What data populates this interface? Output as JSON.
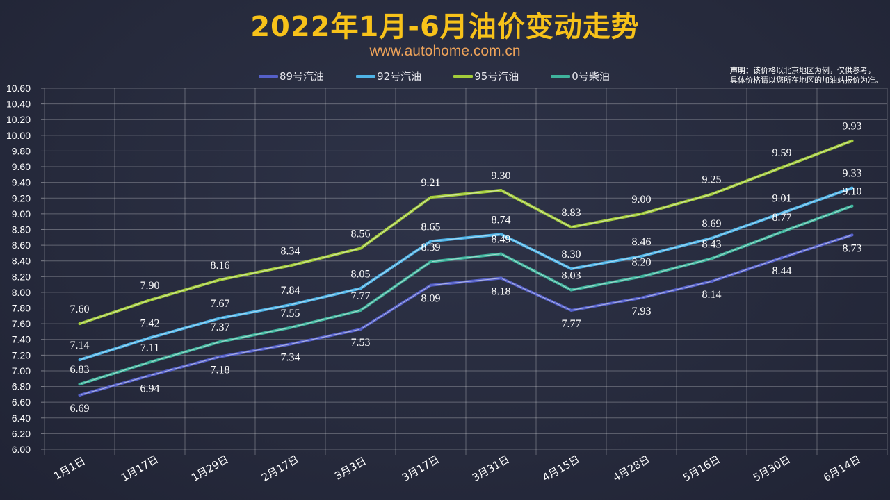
{
  "title": "2022年1月-6月油价变动走势",
  "subtitle": "www.autohome.com.cn",
  "note": {
    "label": "声明：",
    "line1": "该价格以北京地区为例，仅供参考，",
    "line2": "具体价格请以您所在地区的加油站报价为准。"
  },
  "chart_data": {
    "type": "line",
    "title": "2022年1月-6月油价变动走势",
    "xlabel": "",
    "ylabel": "",
    "ylim": [
      6.0,
      10.6
    ],
    "ystep": 0.2,
    "grid": true,
    "legend_position": "top",
    "categories": [
      "1月1日",
      "1月17日",
      "1月29日",
      "2月17日",
      "3月3日",
      "3月17日",
      "3月31日",
      "4月15日",
      "4月28日",
      "5月16日",
      "5月30日",
      "6月14日"
    ],
    "series": [
      {
        "name": "89号汽油",
        "color": "#5560c8",
        "values": [
          6.69,
          6.94,
          7.18,
          7.34,
          7.53,
          8.09,
          8.18,
          7.77,
          7.93,
          8.14,
          8.44,
          8.73
        ]
      },
      {
        "name": "92号汽油",
        "color": "#4fb3e6",
        "values": [
          7.14,
          7.42,
          7.67,
          7.84,
          8.05,
          8.65,
          8.74,
          8.3,
          8.46,
          8.69,
          9.01,
          9.33
        ]
      },
      {
        "name": "95号汽油",
        "color": "#a3cc3a",
        "values": [
          7.6,
          7.9,
          8.16,
          8.34,
          8.56,
          9.21,
          9.3,
          8.83,
          9.0,
          9.25,
          9.59,
          9.93
        ]
      },
      {
        "name": "0号柴油",
        "color": "#3fb39c",
        "values": [
          6.83,
          7.11,
          7.37,
          7.55,
          7.77,
          8.39,
          8.49,
          8.03,
          8.2,
          8.43,
          8.77,
          9.1
        ]
      }
    ]
  }
}
